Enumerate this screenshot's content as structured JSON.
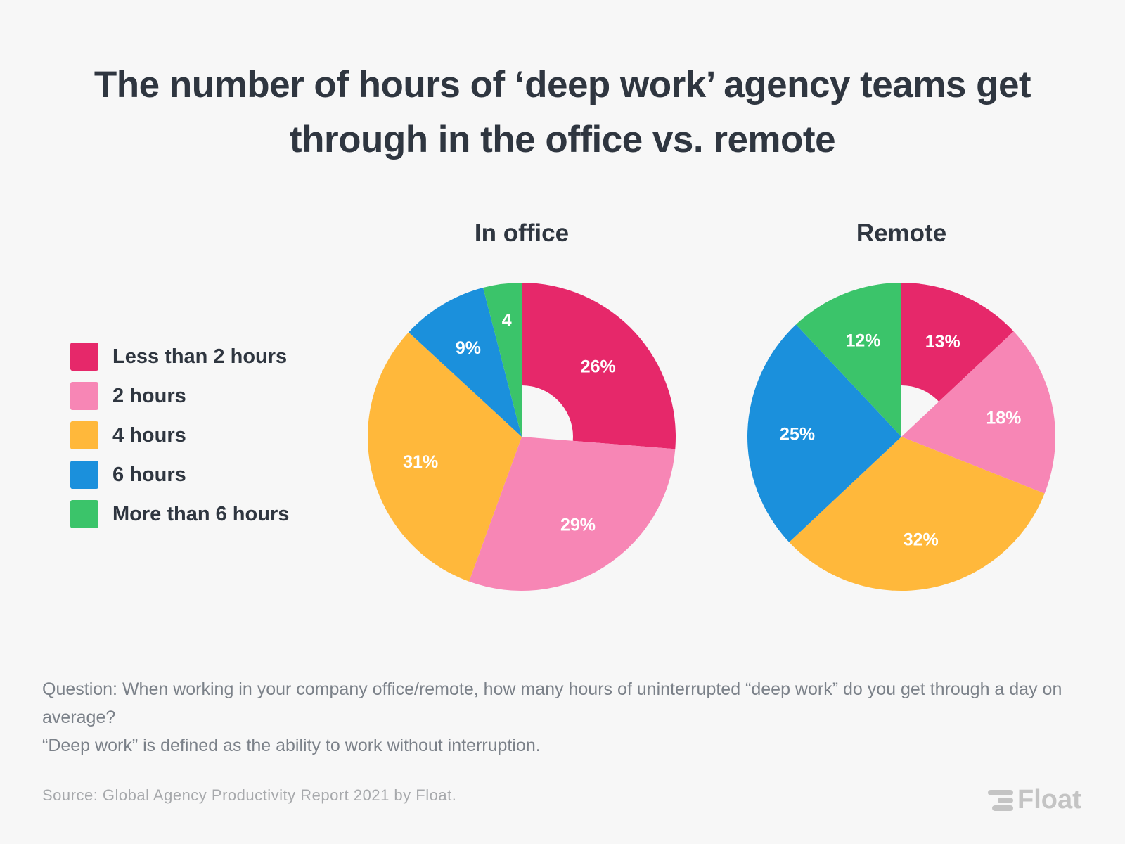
{
  "title_line1": "The number of hours of ‘deep work’ agency teams get",
  "title_line2": "through in the office vs. remote",
  "chart_data": [
    {
      "type": "pie",
      "donut": true,
      "title": "In office",
      "categories": [
        "Less than 2 hours",
        "2 hours",
        "4 hours",
        "6 hours",
        "More than 6 hours"
      ],
      "values": [
        26,
        29,
        31,
        9,
        4
      ],
      "labels": [
        "26%",
        "29%",
        "31%",
        "9%",
        "4"
      ],
      "colors": [
        "#e6286a",
        "#f786b5",
        "#ffb83b",
        "#1b90dc",
        "#3bc46a"
      ]
    },
    {
      "type": "pie",
      "donut": true,
      "title": "Remote",
      "categories": [
        "Less than 2 hours",
        "2 hours",
        "4 hours",
        "6 hours",
        "More than 6 hours"
      ],
      "values": [
        13,
        18,
        32,
        25,
        12
      ],
      "labels": [
        "13%",
        "18%",
        "32%",
        "25%",
        "12%"
      ],
      "colors": [
        "#e6286a",
        "#f786b5",
        "#ffb83b",
        "#1b90dc",
        "#3bc46a"
      ]
    }
  ],
  "legend": [
    {
      "label": "Less than 2 hours",
      "color": "#e6286a"
    },
    {
      "label": "2 hours",
      "color": "#f786b5"
    },
    {
      "label": "4 hours",
      "color": "#ffb83b"
    },
    {
      "label": "6 hours",
      "color": "#1b90dc"
    },
    {
      "label": "More than 6 hours",
      "color": "#3bc46a"
    }
  ],
  "question": "Question: When working in your company office/remote, how many hours of uninterrupted “deep work” do you get through a day on average?",
  "definition": "“Deep work” is defined as the ability to work without interruption.",
  "source": "Source: Global Agency Productivity Report 2021 by Float.",
  "logo": "Float"
}
